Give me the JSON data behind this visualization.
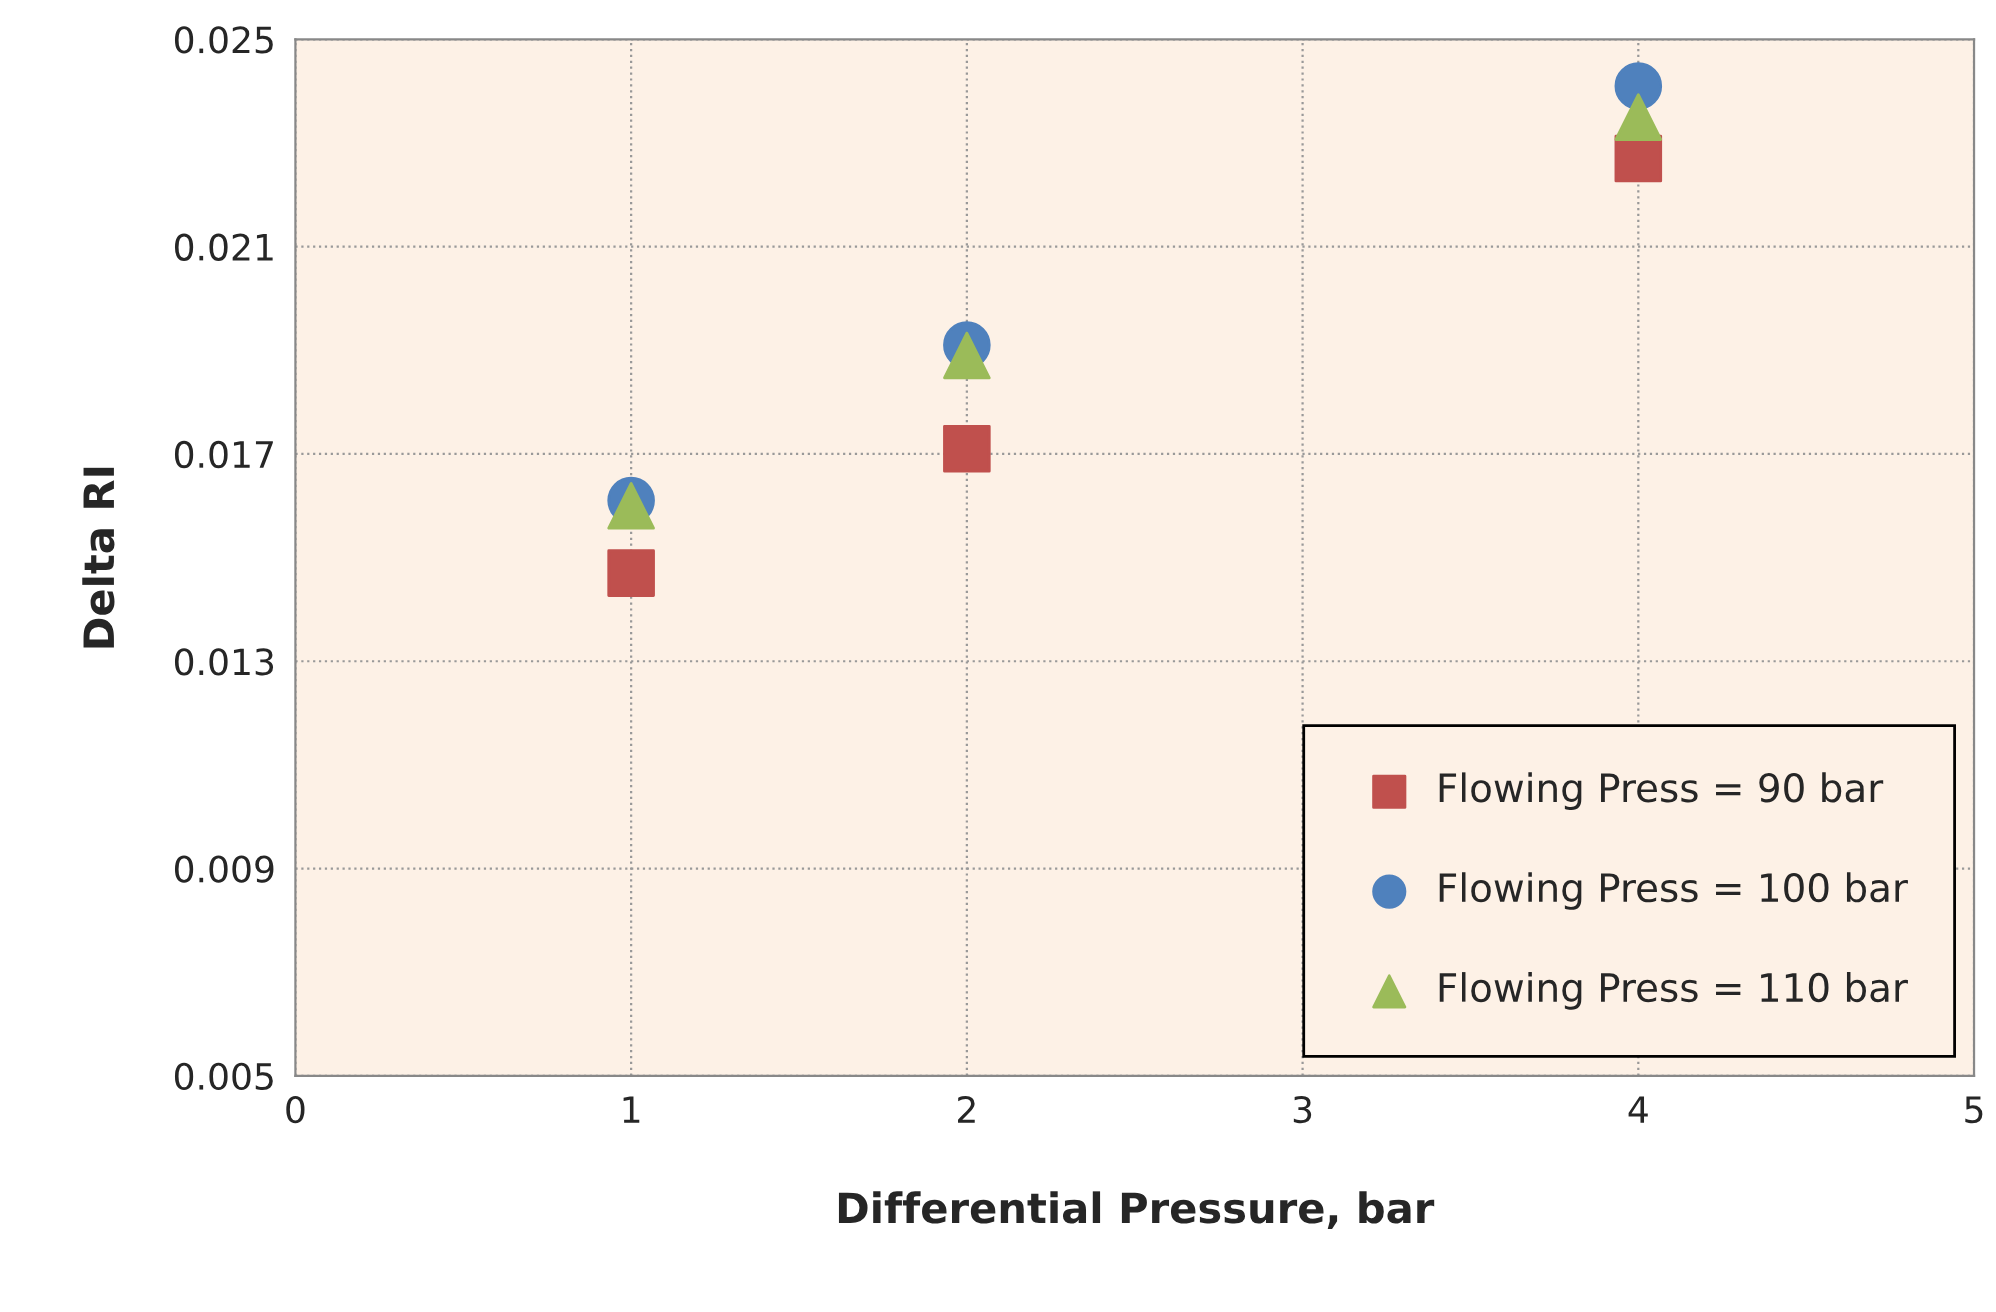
{
  "chart_data": {
    "type": "scatter",
    "xlabel": "Differential Pressure, bar",
    "ylabel": "Delta RI",
    "xlim": [
      0,
      5
    ],
    "xticks": [
      0,
      1,
      2,
      3,
      4,
      5
    ],
    "ylim": [
      0.005,
      0.025
    ],
    "yticks": [
      0.005,
      0.009,
      0.013,
      0.017,
      0.021,
      0.025
    ],
    "grid": true,
    "legend": "bottom right",
    "series": [
      {
        "name": "Flowing Press = 90 bar",
        "color": "#c0504d",
        "marker": "square",
        "x": [
          1,
          2,
          4
        ],
        "values": [
          0.0147,
          0.0171,
          0.0227
        ]
      },
      {
        "name": "Flowing Press = 100 bar",
        "color": "#4f81bd",
        "marker": "circle",
        "x": [
          1,
          2,
          4
        ],
        "values": [
          0.0161,
          0.0191,
          0.0241
        ]
      },
      {
        "name": "Flowing Press = 110 bar",
        "color": "#9bbb59",
        "marker": "triangle",
        "x": [
          1,
          2,
          4
        ],
        "values": [
          0.016,
          0.0189,
          0.0235
        ]
      }
    ]
  }
}
